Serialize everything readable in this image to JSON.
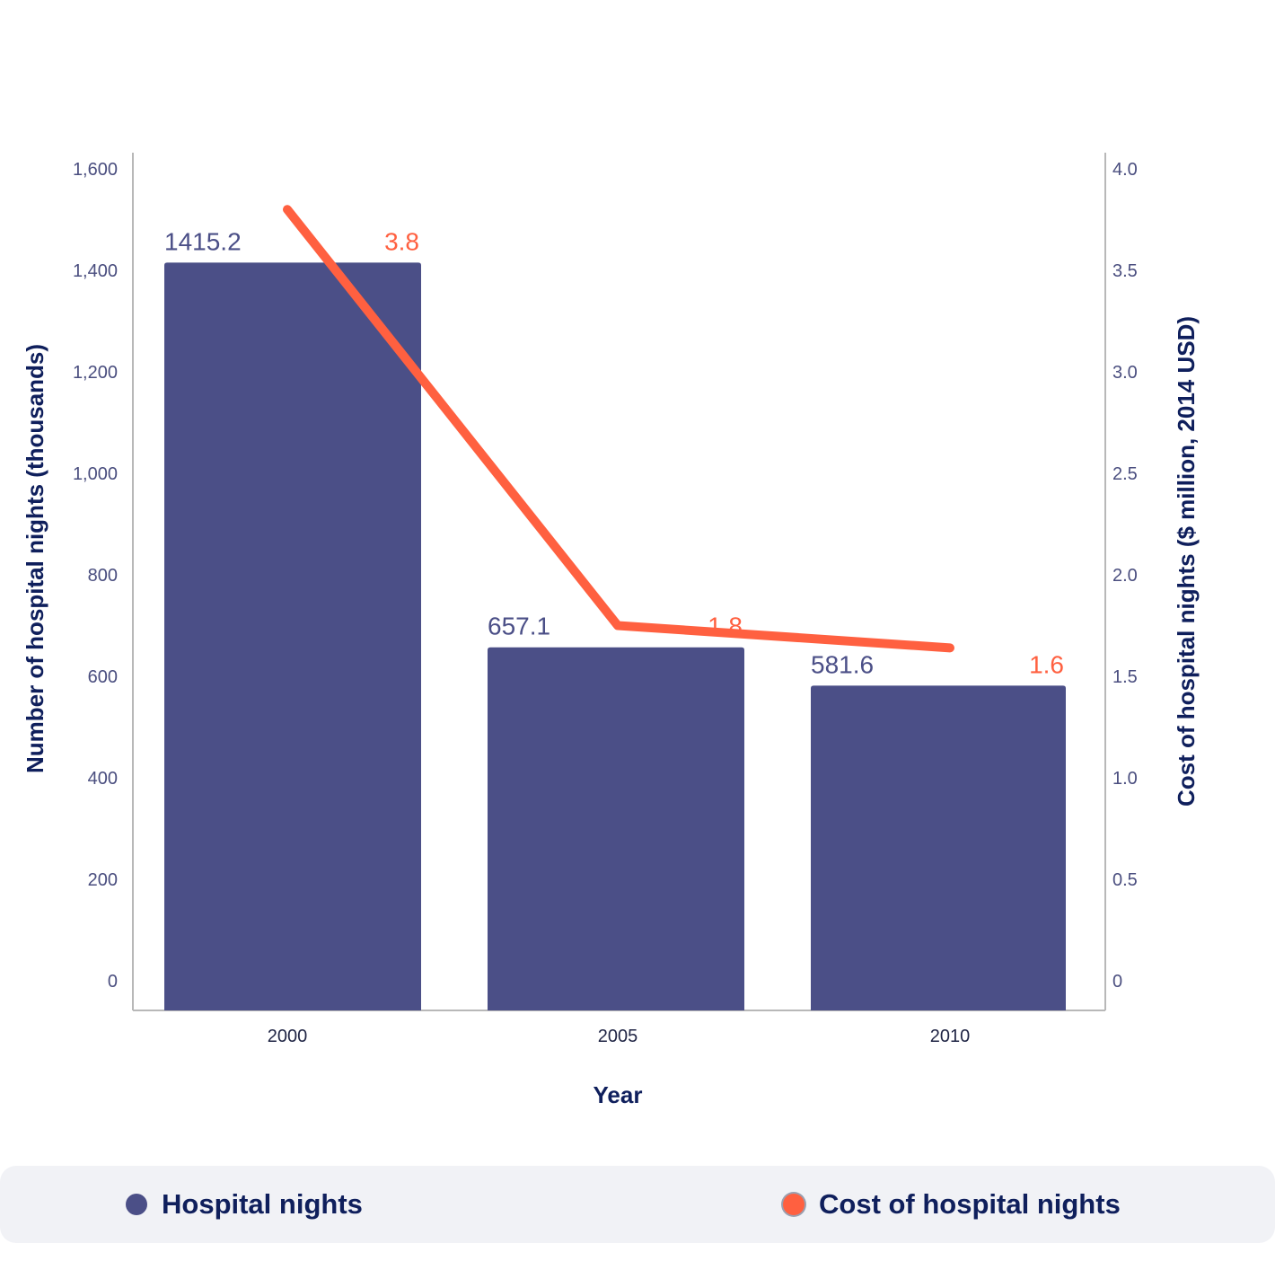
{
  "chart_data": {
    "type": "bar",
    "categories": [
      "2000",
      "2005",
      "2010"
    ],
    "series": [
      {
        "name": "Hospital nights",
        "type": "bar",
        "axis": "left",
        "values": [
          1415.2,
          657.1,
          581.6
        ],
        "labels": [
          "1415.2",
          "657.1",
          "581.6"
        ],
        "color": "#4b4f87"
      },
      {
        "name": "Cost of hospital nights",
        "type": "line",
        "axis": "right",
        "values": [
          3.8,
          1.75,
          1.64
        ],
        "labels": [
          "3.8",
          "1.8",
          "1.6"
        ],
        "color": "#ff6040"
      }
    ],
    "xlabel": "Year",
    "ylabel": "Number of hospital nights (thousands)",
    "y2label": "Cost of hospital nights ($ million, 2014 USD)",
    "ylim": [
      0,
      1600
    ],
    "y2lim": [
      0,
      4.0
    ],
    "yticks": [
      "0",
      "200",
      "400",
      "600",
      "800",
      "1,000",
      "1,200",
      "1,400",
      "1,600"
    ],
    "y2ticks": [
      "0",
      "0.5",
      "1.0",
      "1.5",
      "2.0",
      "2.5",
      "3.0",
      "3.5",
      "4.0"
    ],
    "grid": false,
    "legend_position": "bottom"
  },
  "legend": {
    "items": [
      {
        "label": "Hospital nights",
        "color": "#4b4f87"
      },
      {
        "label": "Cost of hospital nights",
        "color": "#ff6040"
      }
    ]
  }
}
